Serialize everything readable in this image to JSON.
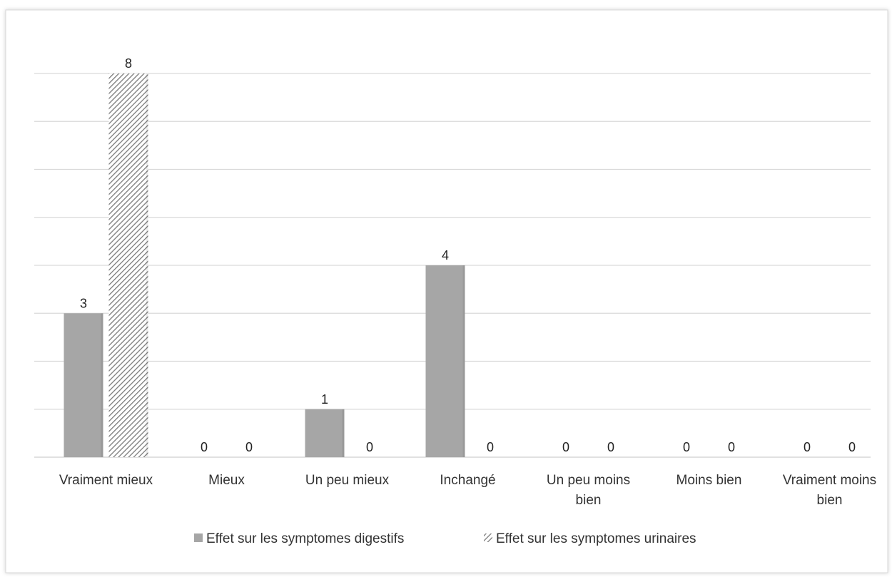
{
  "chart_data": {
    "type": "bar",
    "categories": [
      "Vraiment mieux",
      "Mieux",
      "Un peu mieux",
      "Inchangé",
      "Un peu moins bien",
      "Moins bien",
      "Vraiment moins bien"
    ],
    "series": [
      {
        "name": "Effet sur les symptomes digestifs",
        "values": [
          3,
          0,
          1,
          4,
          0,
          0,
          0
        ],
        "color": "#a6a6a6",
        "pattern": "solid"
      },
      {
        "name": "Effet sur les symptomes urinaires",
        "values": [
          8,
          0,
          0,
          0,
          0,
          0,
          0
        ],
        "color": "#8c8c8c",
        "pattern": "diagonal-hatch"
      }
    ],
    "ylim": [
      0,
      8
    ],
    "y_gridline_step": 1,
    "y_axis_labels_shown": false,
    "grid": true,
    "data_labels": true,
    "legend_position": "bottom"
  }
}
